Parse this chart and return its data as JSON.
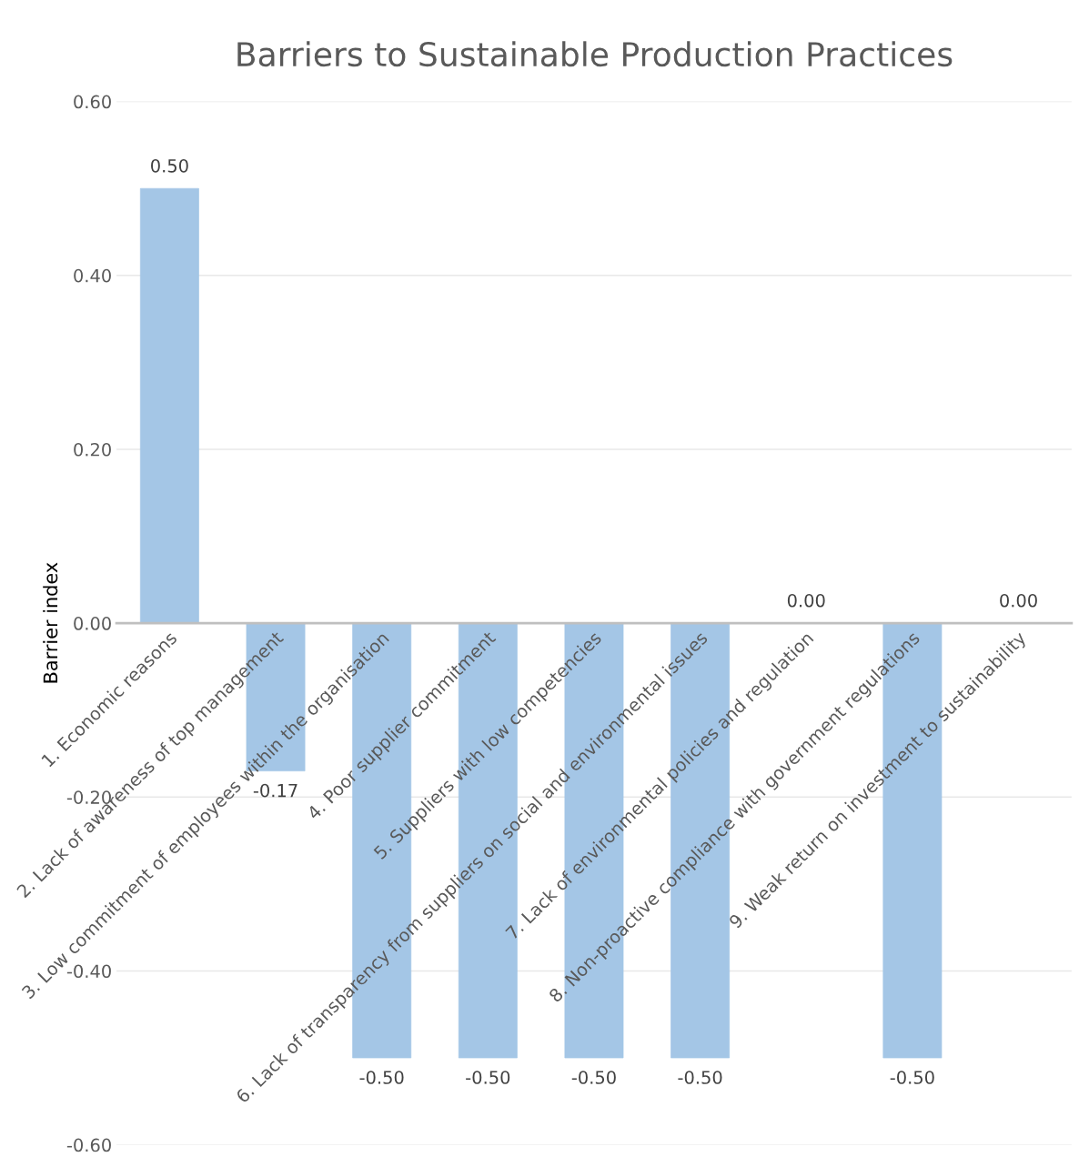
{
  "chart_data": {
    "type": "bar",
    "title": "Barriers to Sustainable Production Practices",
    "ylabel": "Barrier index",
    "categories": [
      "1. Economic reasons",
      "2. Lack of awareness of top management",
      "3. Low commitment of employees within the organisation",
      "4. Poor supplier commitment",
      "5. Suppliers with low competencies",
      "6. Lack of transparency from suppliers on social and environmental issues",
      "7. Lack of environmental policies and regulation",
      "8. Non-proactive compliance with government regulations",
      "9. Weak return on investment to sustainability"
    ],
    "values": [
      0.5,
      -0.17,
      -0.5,
      -0.5,
      -0.5,
      -0.5,
      0.0,
      -0.5,
      0.0
    ],
    "value_labels": [
      "0.50",
      "-0.17",
      "-0.50",
      "-0.50",
      "-0.50",
      "-0.50",
      "0.00",
      "-0.50",
      "0.00"
    ],
    "color": "#a4c6e6",
    "ylim": [
      -0.6,
      0.6
    ],
    "yticks": [
      {
        "value": -0.6,
        "label": "-0.60"
      },
      {
        "value": -0.4,
        "label": "-0.40"
      },
      {
        "value": -0.2,
        "label": "-0.20"
      },
      {
        "value": 0.0,
        "label": "0.00"
      },
      {
        "value": 0.2,
        "label": "0.20"
      },
      {
        "value": 0.4,
        "label": "0.40"
      },
      {
        "value": 0.6,
        "label": "0.60"
      }
    ],
    "grid": "y"
  }
}
